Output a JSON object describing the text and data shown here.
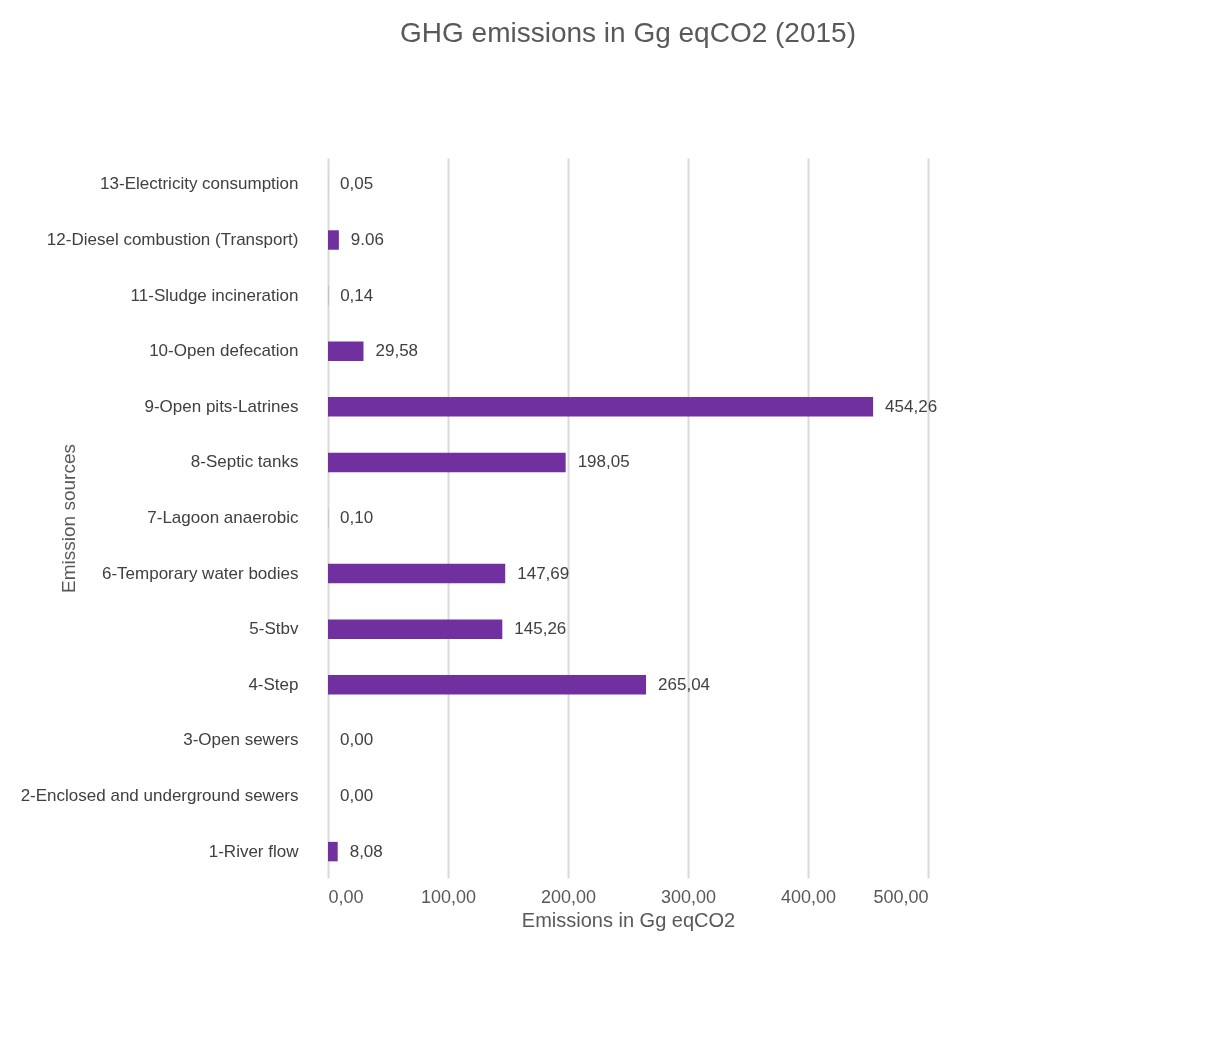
{
  "chart_data": {
    "type": "bar",
    "orientation": "horizontal",
    "title": "GHG emissions in Gg eqCO2 (2015)",
    "xlabel": "Emissions in Gg eqCO2",
    "ylabel": "Emission sources",
    "categories": [
      "13-Electricity consumption",
      "12-Diesel combustion (Transport)",
      "11-Sludge incineration",
      "10-Open defecation",
      "9-Open pits-Latrines",
      "8-Septic tanks",
      "7-Lagoon anaerobic",
      "6-Temporary water bodies",
      "5-Stbv",
      "4-Step",
      "3-Open sewers",
      "2-Enclosed and underground sewers",
      "1-River flow"
    ],
    "values": [
      0.05,
      9.06,
      0.14,
      29.58,
      454.26,
      198.05,
      0.1,
      147.69,
      145.26,
      265.04,
      0.0,
      0.0,
      8.08
    ],
    "value_labels": [
      "0,05",
      "9.06",
      "0,14",
      "29,58",
      "454,26",
      "198,05",
      "0,10",
      "147,69",
      "145,26",
      "265,04",
      "0,00",
      "0,00",
      "8,08"
    ],
    "color": "#7030a0",
    "xlim": [
      0,
      500
    ],
    "xticks": [
      {
        "value": 0,
        "label": "0,00"
      },
      {
        "value": 100,
        "label": "100,00"
      },
      {
        "value": 200,
        "label": "200,00"
      },
      {
        "value": 300,
        "label": "300,00"
      },
      {
        "value": 400,
        "label": "400,00"
      },
      {
        "value": 500,
        "label": "500,00"
      }
    ],
    "grid": "x"
  }
}
